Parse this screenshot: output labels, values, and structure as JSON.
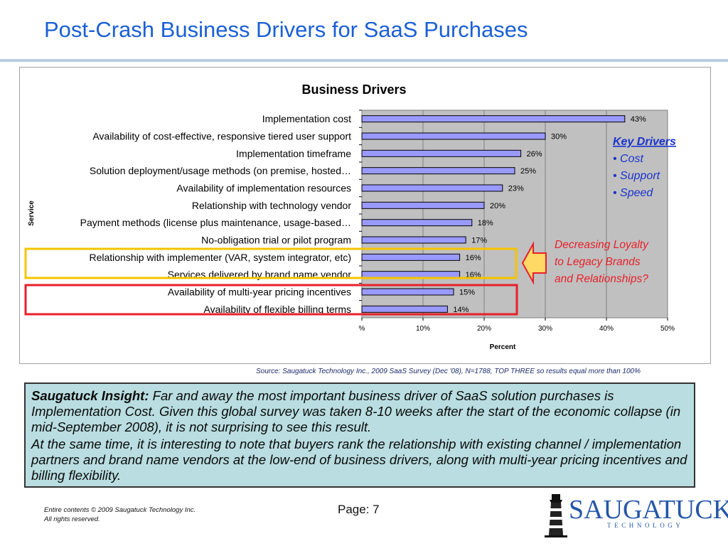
{
  "slide": {
    "title": "Post-Crash Business Drivers for SaaS Purchases",
    "source": "Source: Saugatuck Technology Inc., 2009 SaaS Survey (Dec '08), N=1788, TOP THREE so results equal more than 100%",
    "insight_label": "Saugatuck Insight:",
    "insight_text_1": " Far and away the most important business driver of SaaS solution purchases is Implementation Cost.  Given this global survey was taken 8-10 weeks after the start of the economic collapse (in mid-September 2008), it is not surprising to see this result.",
    "insight_text_2": "At the same time, it is interesting to note that buyers rank the relationship with existing channel / implementation partners and brand name vendors at the low-end of business drivers, along with multi-year pricing incentives and billing flexibility.",
    "footer_line_1": "Entire contents © 2009 Saugatuck Technology Inc.",
    "footer_line_2": "All rights reserved.",
    "page_label": "Page:  7",
    "logo_text": "SAUGATUCK",
    "logo_subtext": "TECHNOLOGY"
  },
  "annotations": {
    "key_drivers_title": "Key Drivers",
    "key_drivers": [
      "• Cost",
      "• Support",
      "• Speed"
    ],
    "loyalty_note": [
      "Decreasing Loyalty",
      "to Legacy Brands",
      "and Relationships?"
    ]
  },
  "colors": {
    "title": "#1a5fd6",
    "bar_fill": "#9999ff",
    "plot_bg": "#c0c0c0",
    "yellow_box": "#f5c400",
    "red_box": "#e8202a",
    "arrow_fill": "#ffd966",
    "arrow_stroke": "#e8202a",
    "key_drivers_text": "#1a33cc",
    "loyalty_text": "#e8202a",
    "insight_bg": "#b9dde0"
  },
  "chart_data": {
    "type": "bar",
    "orientation": "horizontal",
    "title": "Business Drivers",
    "xlabel": "Percent",
    "ylabel": "Service",
    "xlim": [
      0,
      50
    ],
    "x_ticks": [
      "%",
      "10%",
      "20%",
      "30%",
      "40%",
      "50%"
    ],
    "grid": "vertical",
    "categories": [
      "Implementation cost",
      "Availability of cost-effective, responsive tiered user support",
      "Implementation timeframe",
      "Solution deployment/usage methods (on premise, hosted…",
      "Availability of implementation resources",
      "Relationship with technology vendor",
      "Payment methods (license plus maintenance, usage-based…",
      "No-obligation trial or pilot program",
      "Relationship with implementer (VAR, system integrator, etc)",
      "Services delivered by brand name vendor",
      "Availability of multi-year pricing incentives",
      "Availability of flexible billing terms"
    ],
    "values": [
      43,
      30,
      26,
      25,
      23,
      20,
      18,
      17,
      16,
      16,
      15,
      14
    ],
    "data_labels": [
      "43%",
      "30%",
      "26%",
      "25%",
      "23%",
      "20%",
      "18%",
      "17%",
      "16%",
      "16%",
      "15%",
      "14%"
    ]
  }
}
